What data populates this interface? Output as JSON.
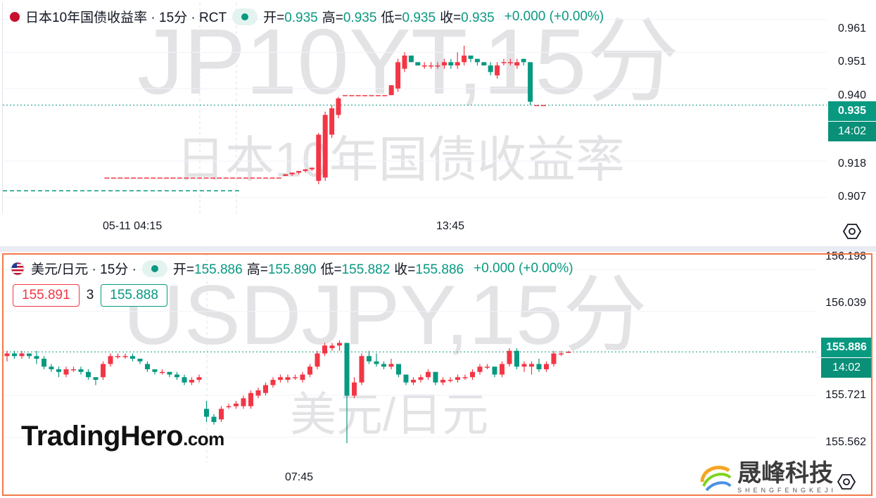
{
  "top": {
    "flag_color": "#c8102e",
    "title": "日本10年国债收益率 · 15分 · RCT",
    "status_icon": "live-dot-icon",
    "ohlc": [
      {
        "k": "开=",
        "v": "0.935"
      },
      {
        "k": "高=",
        "v": "0.935"
      },
      {
        "k": "低=",
        "v": "0.935"
      },
      {
        "k": "收=",
        "v": "0.935"
      }
    ],
    "change": "+0.000 (+0.00%)",
    "watermark_main": "JP10YT,15分",
    "watermark_sub": "日本10年国债收益率",
    "price_ticks": [
      "0.961",
      "0.951",
      "0.940",
      "0.918",
      "0.907"
    ],
    "last_price": "0.935",
    "countdown": "14:02",
    "time_ticks": [
      "05-11 04:15",
      "13:45"
    ],
    "settings_icon": "settings-hex-icon"
  },
  "bottom": {
    "flag_icon": "us-flag-icon",
    "title": "美元/日元 · 15分 ·",
    "status_icon": "live-dot-icon",
    "ohlc": [
      {
        "k": "开=",
        "v": "155.886"
      },
      {
        "k": "高=",
        "v": "155.890"
      },
      {
        "k": "低=",
        "v": "155.882"
      },
      {
        "k": "收=",
        "v": "155.886"
      }
    ],
    "change": "+0.000 (+0.00%)",
    "bid": "155.891",
    "spread": "3",
    "ask": "155.888",
    "watermark_main": "USDJPY,15分",
    "watermark_sub": "美元/日元",
    "price_ticks": [
      "156.198",
      "156.039",
      "155.721",
      "155.562"
    ],
    "last_price": "155.886",
    "countdown": "14:02",
    "time_ticks": [
      "07:45"
    ],
    "brand_main": "TradingHero",
    "brand_suffix": ".com",
    "settings_icon": "settings-hex-icon"
  },
  "corner_logo": {
    "name": "晟峰科技",
    "sub": "SHENGFENGKEJI"
  },
  "colors": {
    "up": "#f23645",
    "down": "#089981",
    "accent_frame": "#f37a4a"
  },
  "chart_data": [
    {
      "type": "candlestick",
      "title": "日本10年国债收益率 · 15分 · RCT",
      "ylim": [
        0.902,
        0.966
      ],
      "yticks": [
        0.961,
        0.951,
        0.94,
        0.918,
        0.907
      ],
      "xticks": [
        "05-11 04:15",
        "13:45"
      ],
      "candles": [
        {
          "o": 0.913,
          "h": 0.913,
          "l": 0.913,
          "c": 0.913
        },
        {
          "o": 0.913,
          "h": 0.913,
          "l": 0.913,
          "c": 0.913
        },
        {
          "o": 0.913,
          "h": 0.913,
          "l": 0.913,
          "c": 0.913
        },
        {
          "o": 0.913,
          "h": 0.913,
          "l": 0.913,
          "c": 0.913
        },
        {
          "o": 0.913,
          "h": 0.913,
          "l": 0.913,
          "c": 0.913
        },
        {
          "o": 0.913,
          "h": 0.913,
          "l": 0.913,
          "c": 0.913
        },
        {
          "o": 0.913,
          "h": 0.913,
          "l": 0.913,
          "c": 0.913
        },
        {
          "o": 0.913,
          "h": 0.913,
          "l": 0.913,
          "c": 0.913
        },
        {
          "o": 0.913,
          "h": 0.913,
          "l": 0.913,
          "c": 0.913
        },
        {
          "o": 0.913,
          "h": 0.913,
          "l": 0.913,
          "c": 0.913
        },
        {
          "o": 0.913,
          "h": 0.913,
          "l": 0.913,
          "c": 0.913
        },
        {
          "o": 0.913,
          "h": 0.913,
          "l": 0.913,
          "c": 0.913
        },
        {
          "o": 0.913,
          "h": 0.913,
          "l": 0.913,
          "c": 0.913
        },
        {
          "o": 0.913,
          "h": 0.913,
          "l": 0.913,
          "c": 0.913
        },
        {
          "o": 0.913,
          "h": 0.913,
          "l": 0.913,
          "c": 0.913
        },
        {
          "o": 0.913,
          "h": 0.913,
          "l": 0.913,
          "c": 0.913
        },
        {
          "o": 0.913,
          "h": 0.913,
          "l": 0.913,
          "c": 0.913
        },
        {
          "o": 0.913,
          "h": 0.913,
          "l": 0.913,
          "c": 0.913
        },
        {
          "o": 0.913,
          "h": 0.913,
          "l": 0.913,
          "c": 0.913
        },
        {
          "o": 0.913,
          "h": 0.913,
          "l": 0.913,
          "c": 0.913
        },
        {
          "o": 0.913,
          "h": 0.913,
          "l": 0.913,
          "c": 0.913
        },
        {
          "o": 0.913,
          "h": 0.913,
          "l": 0.913,
          "c": 0.913
        },
        {
          "o": 0.913,
          "h": 0.913,
          "l": 0.913,
          "c": 0.913
        },
        {
          "o": 0.913,
          "h": 0.913,
          "l": 0.913,
          "c": 0.913
        },
        {
          "o": 0.913,
          "h": 0.913,
          "l": 0.913,
          "c": 0.913
        },
        {
          "o": 0.913,
          "h": 0.913,
          "l": 0.913,
          "c": 0.913
        },
        {
          "o": 0.913,
          "h": 0.913,
          "l": 0.913,
          "c": 0.913
        },
        {
          "o": 0.9135,
          "h": 0.914,
          "l": 0.9135,
          "c": 0.914
        },
        {
          "o": 0.914,
          "h": 0.9145,
          "l": 0.9135,
          "c": 0.9145
        },
        {
          "o": 0.9145,
          "h": 0.915,
          "l": 0.914,
          "c": 0.915
        },
        {
          "o": 0.915,
          "h": 0.9155,
          "l": 0.9145,
          "c": 0.9155
        },
        {
          "o": 0.9155,
          "h": 0.916,
          "l": 0.915,
          "c": 0.916
        },
        {
          "o": 0.912,
          "h": 0.9265,
          "l": 0.911,
          "c": 0.926
        },
        {
          "o": 0.913,
          "h": 0.933,
          "l": 0.912,
          "c": 0.932
        },
        {
          "o": 0.926,
          "h": 0.935,
          "l": 0.925,
          "c": 0.934
        },
        {
          "o": 0.932,
          "h": 0.9375,
          "l": 0.931,
          "c": 0.937
        },
        {
          "o": 0.938,
          "h": 0.938,
          "l": 0.938,
          "c": 0.938
        },
        {
          "o": 0.938,
          "h": 0.938,
          "l": 0.938,
          "c": 0.938
        },
        {
          "o": 0.938,
          "h": 0.938,
          "l": 0.938,
          "c": 0.938
        },
        {
          "o": 0.938,
          "h": 0.938,
          "l": 0.938,
          "c": 0.938
        },
        {
          "o": 0.938,
          "h": 0.938,
          "l": 0.938,
          "c": 0.938
        },
        {
          "o": 0.938,
          "h": 0.938,
          "l": 0.938,
          "c": 0.938
        },
        {
          "o": 0.938,
          "h": 0.938,
          "l": 0.938,
          "c": 0.938
        },
        {
          "o": 0.938,
          "h": 0.941,
          "l": 0.938,
          "c": 0.941
        },
        {
          "o": 0.94,
          "h": 0.949,
          "l": 0.939,
          "c": 0.948
        },
        {
          "o": 0.946,
          "h": 0.951,
          "l": 0.945,
          "c": 0.95
        },
        {
          "o": 0.95,
          "h": 0.95,
          "l": 0.948,
          "c": 0.948
        },
        {
          "o": 0.948,
          "h": 0.948,
          "l": 0.947,
          "c": 0.947
        },
        {
          "o": 0.947,
          "h": 0.948,
          "l": 0.946,
          "c": 0.947
        },
        {
          "o": 0.947,
          "h": 0.948,
          "l": 0.946,
          "c": 0.947
        },
        {
          "o": 0.947,
          "h": 0.948,
          "l": 0.946,
          "c": 0.947
        },
        {
          "o": 0.947,
          "h": 0.949,
          "l": 0.946,
          "c": 0.948
        },
        {
          "o": 0.948,
          "h": 0.949,
          "l": 0.946,
          "c": 0.947
        },
        {
          "o": 0.947,
          "h": 0.951,
          "l": 0.946,
          "c": 0.948
        },
        {
          "o": 0.948,
          "h": 0.953,
          "l": 0.947,
          "c": 0.95
        },
        {
          "o": 0.95,
          "h": 0.95,
          "l": 0.948,
          "c": 0.949
        },
        {
          "o": 0.949,
          "h": 0.949,
          "l": 0.947,
          "c": 0.948
        },
        {
          "o": 0.948,
          "h": 0.948,
          "l": 0.947,
          "c": 0.947
        },
        {
          "o": 0.947,
          "h": 0.948,
          "l": 0.944,
          "c": 0.945
        },
        {
          "o": 0.944,
          "h": 0.948,
          "l": 0.943,
          "c": 0.947
        },
        {
          "o": 0.948,
          "h": 0.949,
          "l": 0.947,
          "c": 0.948
        },
        {
          "o": 0.948,
          "h": 0.949,
          "l": 0.947,
          "c": 0.948
        },
        {
          "o": 0.947,
          "h": 0.949,
          "l": 0.946,
          "c": 0.948
        },
        {
          "o": 0.949,
          "h": 0.949,
          "l": 0.947,
          "c": 0.948
        },
        {
          "o": 0.948,
          "h": 0.948,
          "l": 0.935,
          "c": 0.936
        },
        {
          "o": 0.935,
          "h": 0.935,
          "l": 0.935,
          "c": 0.935
        },
        {
          "o": 0.935,
          "h": 0.935,
          "l": 0.935,
          "c": 0.935
        }
      ]
    },
    {
      "type": "candlestick",
      "title": "美元/日元 · 15分",
      "ylim": [
        155.46,
        156.26
      ],
      "yticks": [
        156.198,
        156.039,
        155.721,
        155.562
      ],
      "xticks": [
        "07:45"
      ],
      "candles": [
        {
          "o": 155.87,
          "h": 155.89,
          "l": 155.85,
          "c": 155.88
        },
        {
          "o": 155.88,
          "h": 155.89,
          "l": 155.86,
          "c": 155.87
        },
        {
          "o": 155.87,
          "h": 155.89,
          "l": 155.86,
          "c": 155.88
        },
        {
          "o": 155.88,
          "h": 155.88,
          "l": 155.86,
          "c": 155.87
        },
        {
          "o": 155.87,
          "h": 155.89,
          "l": 155.84,
          "c": 155.86
        },
        {
          "o": 155.86,
          "h": 155.87,
          "l": 155.82,
          "c": 155.83
        },
        {
          "o": 155.83,
          "h": 155.84,
          "l": 155.81,
          "c": 155.82
        },
        {
          "o": 155.82,
          "h": 155.83,
          "l": 155.79,
          "c": 155.81
        },
        {
          "o": 155.8,
          "h": 155.83,
          "l": 155.79,
          "c": 155.82
        },
        {
          "o": 155.82,
          "h": 155.83,
          "l": 155.81,
          "c": 155.82
        },
        {
          "o": 155.82,
          "h": 155.83,
          "l": 155.8,
          "c": 155.81
        },
        {
          "o": 155.81,
          "h": 155.82,
          "l": 155.78,
          "c": 155.79
        },
        {
          "o": 155.79,
          "h": 155.79,
          "l": 155.76,
          "c": 155.78
        },
        {
          "o": 155.79,
          "h": 155.85,
          "l": 155.78,
          "c": 155.84
        },
        {
          "o": 155.84,
          "h": 155.88,
          "l": 155.83,
          "c": 155.87
        },
        {
          "o": 155.87,
          "h": 155.88,
          "l": 155.86,
          "c": 155.87
        },
        {
          "o": 155.87,
          "h": 155.88,
          "l": 155.86,
          "c": 155.87
        },
        {
          "o": 155.87,
          "h": 155.88,
          "l": 155.85,
          "c": 155.86
        },
        {
          "o": 155.86,
          "h": 155.86,
          "l": 155.84,
          "c": 155.85
        },
        {
          "o": 155.84,
          "h": 155.85,
          "l": 155.81,
          "c": 155.82
        },
        {
          "o": 155.82,
          "h": 155.82,
          "l": 155.8,
          "c": 155.81
        },
        {
          "o": 155.81,
          "h": 155.82,
          "l": 155.8,
          "c": 155.81
        },
        {
          "o": 155.81,
          "h": 155.81,
          "l": 155.79,
          "c": 155.8
        },
        {
          "o": 155.8,
          "h": 155.81,
          "l": 155.78,
          "c": 155.79
        },
        {
          "o": 155.79,
          "h": 155.8,
          "l": 155.76,
          "c": 155.77
        },
        {
          "o": 155.77,
          "h": 155.79,
          "l": 155.76,
          "c": 155.78
        },
        {
          "o": 155.78,
          "h": 155.8,
          "l": 155.77,
          "c": 155.79
        },
        {
          "o": 155.67,
          "h": 155.7,
          "l": 155.62,
          "c": 155.64
        },
        {
          "o": 155.64,
          "h": 155.65,
          "l": 155.61,
          "c": 155.62
        },
        {
          "o": 155.63,
          "h": 155.68,
          "l": 155.62,
          "c": 155.67
        },
        {
          "o": 155.68,
          "h": 155.69,
          "l": 155.67,
          "c": 155.68
        },
        {
          "o": 155.68,
          "h": 155.7,
          "l": 155.67,
          "c": 155.69
        },
        {
          "o": 155.68,
          "h": 155.72,
          "l": 155.67,
          "c": 155.71
        },
        {
          "o": 155.68,
          "h": 155.74,
          "l": 155.67,
          "c": 155.73
        },
        {
          "o": 155.72,
          "h": 155.75,
          "l": 155.71,
          "c": 155.74
        },
        {
          "o": 155.73,
          "h": 155.77,
          "l": 155.72,
          "c": 155.76
        },
        {
          "o": 155.76,
          "h": 155.79,
          "l": 155.75,
          "c": 155.78
        },
        {
          "o": 155.78,
          "h": 155.8,
          "l": 155.77,
          "c": 155.79
        },
        {
          "o": 155.78,
          "h": 155.8,
          "l": 155.77,
          "c": 155.79
        },
        {
          "o": 155.79,
          "h": 155.8,
          "l": 155.78,
          "c": 155.79
        },
        {
          "o": 155.78,
          "h": 155.81,
          "l": 155.77,
          "c": 155.8
        },
        {
          "o": 155.8,
          "h": 155.84,
          "l": 155.79,
          "c": 155.83
        },
        {
          "o": 155.83,
          "h": 155.89,
          "l": 155.82,
          "c": 155.88
        },
        {
          "o": 155.88,
          "h": 155.92,
          "l": 155.87,
          "c": 155.91
        },
        {
          "o": 155.9,
          "h": 155.92,
          "l": 155.89,
          "c": 155.91
        },
        {
          "o": 155.91,
          "h": 155.93,
          "l": 155.89,
          "c": 155.92
        },
        {
          "o": 155.92,
          "h": 155.92,
          "l": 155.54,
          "c": 155.72
        },
        {
          "o": 155.72,
          "h": 155.79,
          "l": 155.71,
          "c": 155.77
        },
        {
          "o": 155.77,
          "h": 155.88,
          "l": 155.76,
          "c": 155.87
        },
        {
          "o": 155.87,
          "h": 155.89,
          "l": 155.84,
          "c": 155.85
        },
        {
          "o": 155.85,
          "h": 155.88,
          "l": 155.83,
          "c": 155.84
        },
        {
          "o": 155.84,
          "h": 155.85,
          "l": 155.82,
          "c": 155.83
        },
        {
          "o": 155.83,
          "h": 155.86,
          "l": 155.82,
          "c": 155.84
        },
        {
          "o": 155.84,
          "h": 155.84,
          "l": 155.79,
          "c": 155.8
        },
        {
          "o": 155.8,
          "h": 155.8,
          "l": 155.76,
          "c": 155.77
        },
        {
          "o": 155.77,
          "h": 155.79,
          "l": 155.76,
          "c": 155.78
        },
        {
          "o": 155.78,
          "h": 155.8,
          "l": 155.77,
          "c": 155.79
        },
        {
          "o": 155.79,
          "h": 155.82,
          "l": 155.78,
          "c": 155.81
        },
        {
          "o": 155.81,
          "h": 155.81,
          "l": 155.76,
          "c": 155.77
        },
        {
          "o": 155.77,
          "h": 155.79,
          "l": 155.76,
          "c": 155.78
        },
        {
          "o": 155.78,
          "h": 155.79,
          "l": 155.77,
          "c": 155.78
        },
        {
          "o": 155.78,
          "h": 155.8,
          "l": 155.77,
          "c": 155.79
        },
        {
          "o": 155.79,
          "h": 155.8,
          "l": 155.78,
          "c": 155.79
        },
        {
          "o": 155.79,
          "h": 155.82,
          "l": 155.78,
          "c": 155.81
        },
        {
          "o": 155.81,
          "h": 155.84,
          "l": 155.8,
          "c": 155.83
        },
        {
          "o": 155.83,
          "h": 155.84,
          "l": 155.82,
          "c": 155.83
        },
        {
          "o": 155.83,
          "h": 155.83,
          "l": 155.79,
          "c": 155.8
        },
        {
          "o": 155.8,
          "h": 155.85,
          "l": 155.79,
          "c": 155.84
        },
        {
          "o": 155.84,
          "h": 155.9,
          "l": 155.83,
          "c": 155.89
        },
        {
          "o": 155.89,
          "h": 155.9,
          "l": 155.82,
          "c": 155.83
        },
        {
          "o": 155.83,
          "h": 155.85,
          "l": 155.81,
          "c": 155.84
        },
        {
          "o": 155.83,
          "h": 155.85,
          "l": 155.8,
          "c": 155.84
        },
        {
          "o": 155.84,
          "h": 155.86,
          "l": 155.81,
          "c": 155.82
        },
        {
          "o": 155.82,
          "h": 155.85,
          "l": 155.81,
          "c": 155.84
        },
        {
          "o": 155.84,
          "h": 155.89,
          "l": 155.83,
          "c": 155.88
        },
        {
          "o": 155.88,
          "h": 155.89,
          "l": 155.87,
          "c": 155.88
        },
        {
          "o": 155.886,
          "h": 155.89,
          "l": 155.882,
          "c": 155.886
        }
      ]
    }
  ]
}
